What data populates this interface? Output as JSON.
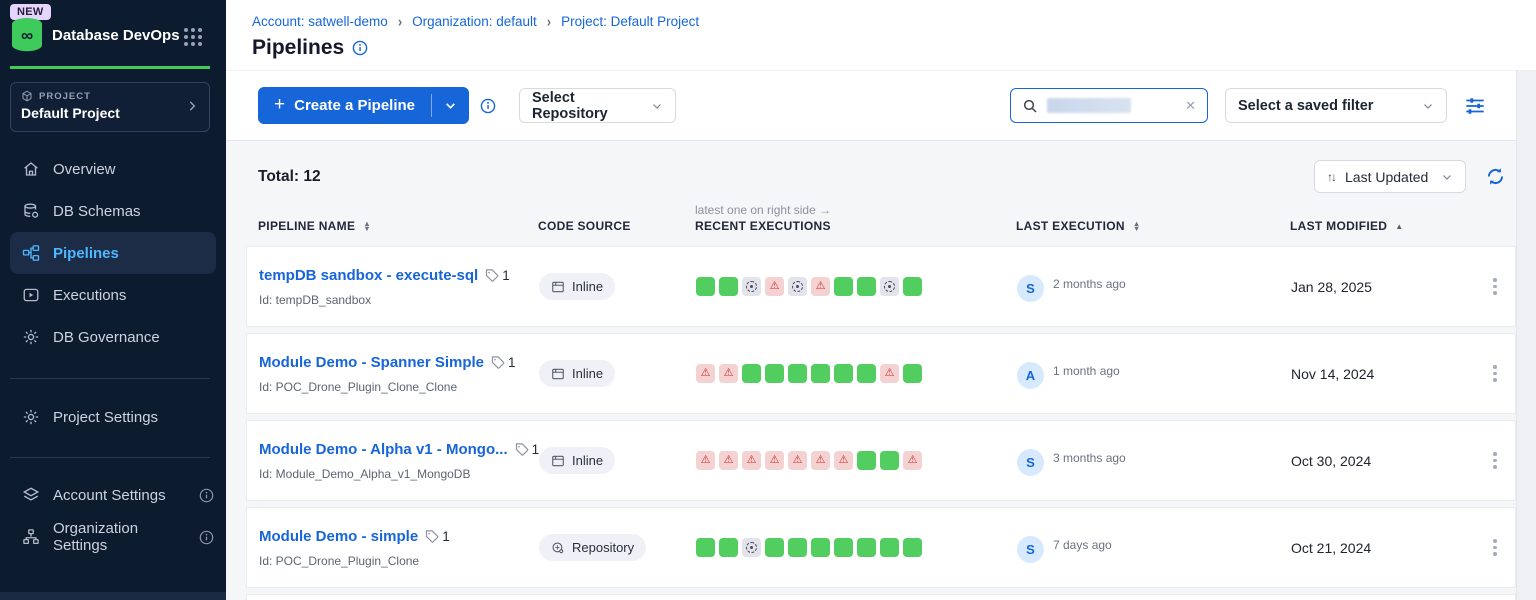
{
  "sidebar": {
    "new_badge": "NEW",
    "app_title": "Database DevOps",
    "project_label": "PROJECT",
    "project_name": "Default Project",
    "nav": [
      {
        "label": "Overview"
      },
      {
        "label": "DB Schemas"
      },
      {
        "label": "Pipelines"
      },
      {
        "label": "Executions"
      },
      {
        "label": "DB Governance"
      }
    ],
    "project_settings_label": "Project Settings",
    "account_settings_label": "Account Settings",
    "organization_settings_label": "Organization Settings"
  },
  "header": {
    "breadcrumbs": [
      {
        "label": "Account: satwell-demo"
      },
      {
        "label": "Organization: default"
      },
      {
        "label": "Project: Default Project"
      }
    ],
    "title": "Pipelines"
  },
  "toolbar": {
    "create_button_label": "Create a Pipeline",
    "select_repository_label": "Select Repository",
    "saved_filter_placeholder": "Select a saved filter"
  },
  "list": {
    "total_label": "Total: 12",
    "sort_label": "Last Updated",
    "executions_hint": "latest one on right side →",
    "columns": {
      "pipeline_name": "PIPELINE NAME",
      "code_source": "CODE SOURCE",
      "recent_executions": "RECENT EXECUTIONS",
      "last_execution": "LAST EXECUTION",
      "last_modified": "LAST MODIFIED"
    },
    "rows": [
      {
        "name": "tempDB sandbox - execute-sql",
        "tag_count": "1",
        "id": "Id: tempDB_sandbox",
        "source": "Inline",
        "source_type": "inline",
        "executions": [
          "s",
          "s",
          "c",
          "f",
          "c",
          "f",
          "s",
          "s",
          "c",
          "s"
        ],
        "avatar": "S",
        "ago": "2 months ago",
        "modified": "Jan 28, 2025"
      },
      {
        "name": "Module Demo - Spanner Simple",
        "tag_count": "1",
        "id": "Id: POC_Drone_Plugin_Clone_Clone",
        "source": "Inline",
        "source_type": "inline",
        "executions": [
          "f",
          "f",
          "s",
          "s",
          "s",
          "s",
          "s",
          "s",
          "f",
          "s"
        ],
        "avatar": "A",
        "ago": "1 month ago",
        "modified": "Nov 14, 2024"
      },
      {
        "name": "Module Demo - Alpha v1 - Mongo...",
        "tag_count": "1",
        "id": "Id: Module_Demo_Alpha_v1_MongoDB",
        "source": "Inline",
        "source_type": "inline",
        "executions": [
          "f",
          "f",
          "f",
          "f",
          "f",
          "f",
          "f",
          "s",
          "s",
          "f"
        ],
        "avatar": "S",
        "ago": "3 months ago",
        "modified": "Oct 30, 2024"
      },
      {
        "name": "Module Demo - simple",
        "tag_count": "1",
        "id": "Id: POC_Drone_Plugin_Clone",
        "source": "Repository",
        "source_type": "repository",
        "executions": [
          "s",
          "s",
          "c",
          "s",
          "s",
          "s",
          "s",
          "s",
          "s",
          "s"
        ],
        "avatar": "S",
        "ago": "7 days ago",
        "modified": "Oct 21, 2024"
      }
    ]
  },
  "icons": {
    "plus": "+",
    "close": "✕",
    "chevron_sep": "›",
    "project_chevron": "›",
    "sort_up": "▲",
    "sort_down": "▼",
    "updown": "↑↓",
    "warning": "⚠"
  },
  "colors": {
    "primary_blue": "#1666d9",
    "success_green": "#52cd60",
    "failed_red": "#ce2f2f",
    "failed_bg": "#f5d2d2",
    "cancelled_bg": "#e3e3eb",
    "sidebar_bg": "#0d1b2f",
    "active_nav_text": "#4fb7ff",
    "brand_green": "#3ecb5b"
  }
}
